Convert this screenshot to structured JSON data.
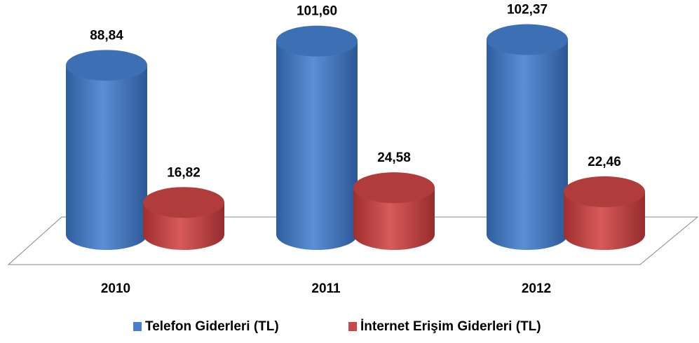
{
  "chart_data": {
    "type": "bar",
    "categories": [
      "2010",
      "2011",
      "2012"
    ],
    "series": [
      {
        "name": "Telefon Giderleri (TL)",
        "color": "#4a7ec8",
        "values": [
          88.84,
          101.6,
          102.37
        ],
        "value_labels": [
          "88,84",
          "101,60",
          "102,37"
        ]
      },
      {
        "name": "İnternet Erişim Giderleri (TL)",
        "color": "#c84848",
        "values": [
          16.82,
          24.58,
          22.46
        ],
        "value_labels": [
          "16,82",
          "24,58",
          "22,46"
        ]
      }
    ],
    "legend": "bottom"
  }
}
